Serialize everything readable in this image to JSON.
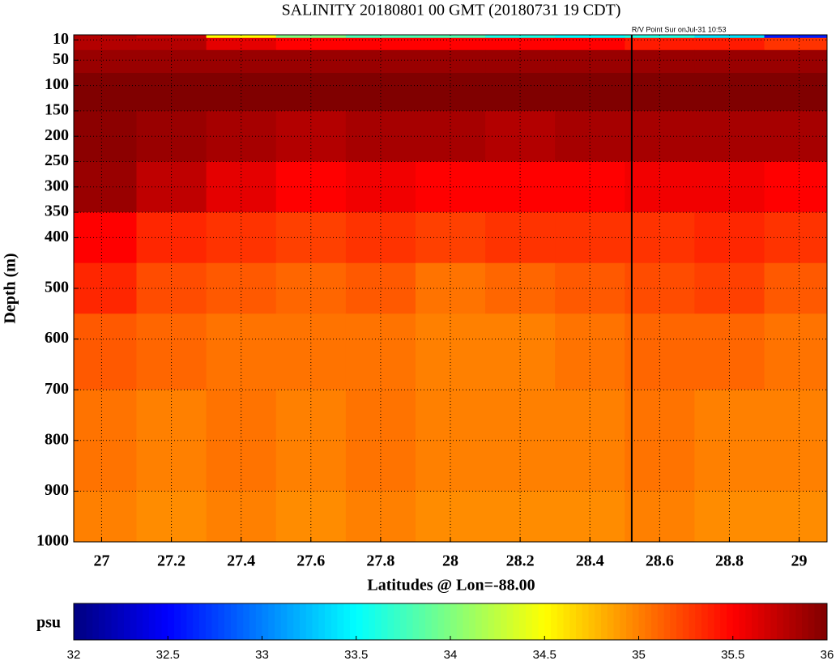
{
  "chart_data": {
    "type": "heatmap",
    "title": "SALINITY 20180801 00 GMT (20180731 19 CDT)",
    "xlabel": "Latitudes @ Lon=-88.00",
    "ylabel": "Depth (m)",
    "x": [
      27,
      27.2,
      27.4,
      27.6,
      27.8,
      28,
      28.2,
      28.4,
      28.6,
      28.8,
      29
    ],
    "y": [
      2,
      10,
      50,
      100,
      200,
      300,
      400,
      500,
      600,
      800,
      1000
    ],
    "z": [
      [
        35.8,
        35.7,
        34.5,
        34,
        33.8,
        33.8,
        33.6,
        33.5,
        33.6,
        33.4,
        32.6
      ],
      [
        35.8,
        35.8,
        35.6,
        35.5,
        35.5,
        35.5,
        35.5,
        35.5,
        35.4,
        35.4,
        35.3
      ],
      [
        35.9,
        35.9,
        35.9,
        35.9,
        35.9,
        35.9,
        35.9,
        35.9,
        35.9,
        35.9,
        35.9
      ],
      [
        36,
        36,
        36,
        36,
        36,
        36,
        36,
        36,
        36,
        36,
        36
      ],
      [
        35.95,
        35.9,
        35.85,
        35.8,
        35.85,
        35.85,
        35.8,
        35.85,
        35.85,
        35.85,
        35.85
      ],
      [
        35.9,
        35.75,
        35.6,
        35.5,
        35.55,
        35.5,
        35.5,
        35.5,
        35.55,
        35.55,
        35.5
      ],
      [
        35.5,
        35.35,
        35.3,
        35.25,
        35.3,
        35.25,
        35.3,
        35.3,
        35.3,
        35.35,
        35.3
      ],
      [
        35.35,
        35.2,
        35.15,
        35.1,
        35.15,
        35.05,
        35.1,
        35.15,
        35.2,
        35.25,
        35.15
      ],
      [
        35.15,
        35.1,
        35.05,
        35.05,
        35.05,
        35,
        35,
        35.05,
        35.1,
        35.1,
        35.05
      ],
      [
        35.05,
        35,
        35.05,
        35,
        35.05,
        35,
        35,
        35,
        35.05,
        35,
        35
      ],
      [
        35,
        34.95,
        35,
        34.95,
        35,
        34.95,
        34.95,
        34.95,
        35,
        34.95,
        34.95
      ]
    ],
    "xlim": [
      26.92,
      29.08
    ],
    "xticks": [
      27,
      27.2,
      27.4,
      27.6,
      27.8,
      28,
      28.2,
      28.4,
      28.6,
      28.8,
      29
    ],
    "ylim": [
      1000,
      0
    ],
    "yticks": [
      10,
      50,
      100,
      150,
      200,
      250,
      300,
      350,
      400,
      500,
      600,
      700,
      800,
      900,
      1000
    ],
    "grid": true,
    "colormap": "jet",
    "clim": [
      32,
      36
    ],
    "colorbar_label": "psu",
    "colorbar_ticks": [
      32,
      32.5,
      33,
      33.5,
      34,
      34.5,
      35,
      35.5,
      36
    ],
    "annotations": [
      {
        "text": "R/V Point Sur onJul-31 10:53",
        "x": 28.52
      }
    ]
  }
}
